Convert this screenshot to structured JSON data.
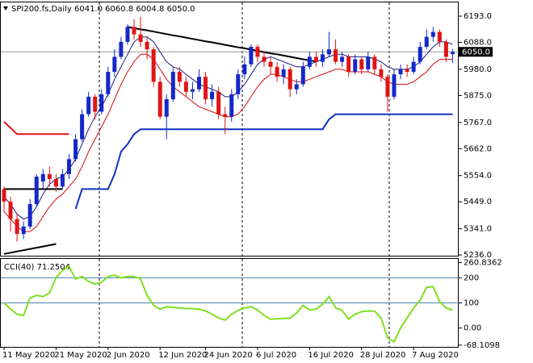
{
  "chart_data": {
    "type": "candlestick",
    "title": "SPI200.fs,Daily  6041.0 6060.8 6004.8 6050.0",
    "categories": [
      "11 May 2020",
      null,
      null,
      null,
      null,
      null,
      null,
      null,
      "21 May 2020",
      null,
      null,
      null,
      null,
      null,
      null,
      null,
      "2 Jun 2020",
      null,
      null,
      null,
      null,
      null,
      null,
      null,
      "12 Jun 2020",
      null,
      null,
      null,
      null,
      null,
      null,
      "24 Jun 2020",
      null,
      null,
      null,
      null,
      null,
      null,
      null,
      "6 Jul 2020",
      null,
      null,
      null,
      null,
      null,
      null,
      null,
      "16 Jul 2020",
      null,
      null,
      null,
      null,
      null,
      null,
      null,
      "28 Jul 2020",
      null,
      null,
      null,
      null,
      null,
      null,
      null,
      "7 Aug 2020",
      null,
      null,
      null,
      null,
      null,
      null
    ],
    "open": [
      5500,
      5450,
      5380,
      5320,
      5350,
      5440,
      5530,
      5560,
      5540,
      5510,
      5560,
      5620,
      5700,
      5800,
      5870,
      5810,
      5880,
      5970,
      6030,
      6090,
      6150,
      6120,
      6090,
      6060,
      5930,
      5790,
      5860,
      5970,
      5930,
      5890,
      5900,
      5950,
      5860,
      5890,
      5800,
      5790,
      5880,
      5960,
      6000,
      6070,
      6030,
      6010,
      5990,
      5950,
      5980,
      5900,
      5920,
      5990,
      6030,
      6010,
      6040,
      6060,
      6010,
      6030,
      5970,
      6020,
      5980,
      6030,
      5980,
      5950,
      5870,
      5960,
      5980,
      5970,
      6010,
      6070,
      6110,
      6130,
      6090,
      6041
    ],
    "high": [
      5510,
      5470,
      5400,
      5370,
      5460,
      5560,
      5580,
      5590,
      5560,
      5580,
      5640,
      5720,
      5820,
      5890,
      5880,
      5900,
      5990,
      6060,
      6110,
      6160,
      6180,
      6190,
      6110,
      6070,
      5950,
      5880,
      5990,
      5990,
      5950,
      5930,
      5980,
      5970,
      5920,
      5910,
      5830,
      5900,
      5980,
      6030,
      6080,
      6080,
      6050,
      6030,
      6010,
      6000,
      5990,
      5940,
      6010,
      6050,
      6050,
      6060,
      6130,
      6100,
      6050,
      6040,
      6040,
      6030,
      6050,
      6040,
      6000,
      5960,
      5980,
      6000,
      6000,
      6030,
      6090,
      6140,
      6150,
      6140,
      6100,
      6060.8
    ],
    "low": [
      5410,
      5330,
      5290,
      5300,
      5340,
      5430,
      5500,
      5510,
      5490,
      5500,
      5540,
      5610,
      5690,
      5790,
      5780,
      5800,
      5870,
      5950,
      6020,
      6080,
      6100,
      6070,
      6020,
      5910,
      5780,
      5700,
      5850,
      5910,
      5870,
      5860,
      5890,
      5840,
      5830,
      5780,
      5720,
      5770,
      5860,
      5940,
      5990,
      6010,
      5990,
      5960,
      5930,
      5920,
      5870,
      5880,
      5910,
      5980,
      5990,
      5990,
      6030,
      6000,
      5990,
      5950,
      5960,
      5960,
      5970,
      5960,
      5930,
      5810,
      5860,
      5940,
      5950,
      5960,
      6000,
      6060,
      6090,
      6070,
      6010,
      6004.8
    ],
    "close": [
      5450,
      5380,
      5320,
      5350,
      5440,
      5550,
      5560,
      5540,
      5510,
      5560,
      5620,
      5700,
      5800,
      5870,
      5810,
      5880,
      5970,
      6030,
      6090,
      6150,
      6120,
      6090,
      6060,
      5930,
      5790,
      5860,
      5970,
      5930,
      5890,
      5900,
      5950,
      5860,
      5890,
      5800,
      5790,
      5880,
      5960,
      6000,
      6070,
      6030,
      6010,
      5990,
      5950,
      5980,
      5900,
      5920,
      5990,
      6030,
      6010,
      6040,
      6060,
      6010,
      6030,
      5970,
      6020,
      5980,
      6030,
      5980,
      5950,
      5870,
      5960,
      5980,
      5970,
      6010,
      6070,
      6110,
      6130,
      6090,
      6030,
      6050
    ],
    "up_color": "#1428c8",
    "down_color": "#e01414",
    "ylim": [
      5233,
      6248
    ],
    "yticks": [
      {
        "value": 6193,
        "label": "6193.0"
      },
      {
        "value": 6088,
        "label": "6088.0"
      },
      {
        "value": 5980,
        "label": "5980.0"
      },
      {
        "value": 5875,
        "label": "5875.0"
      },
      {
        "value": 5767,
        "label": "5767.0"
      },
      {
        "value": 5662,
        "label": "5662.0"
      },
      {
        "value": 5554,
        "label": "5554.0"
      },
      {
        "value": 5449,
        "label": "5449.0"
      },
      {
        "value": 5341,
        "label": "5341.0"
      },
      {
        "value": 5236,
        "label": "5236.0"
      }
    ],
    "last_price": {
      "value": 6050,
      "label": "6050.0"
    },
    "series": [
      {
        "color": "#1a1a80",
        "width": 1,
        "values": [
          5470,
          5440,
          5400,
          5380,
          5390,
          5430,
          5480,
          5520,
          5540,
          5550,
          5580,
          5620,
          5680,
          5740,
          5790,
          5830,
          5880,
          5940,
          5990,
          6040,
          6090,
          6110,
          6110,
          6090,
          6050,
          6010,
          5990,
          5980,
          5960,
          5940,
          5920,
          5910,
          5900,
          5890,
          5870,
          5870,
          5890,
          5920,
          5960,
          6000,
          6020,
          6030,
          6020,
          6010,
          6000,
          5990,
          5990,
          6000,
          6010,
          6020,
          6030,
          6040,
          6040,
          6030,
          6030,
          6030,
          6030,
          6020,
          6010,
          5990,
          5980,
          5980,
          5980,
          5990,
          6010,
          6040,
          6070,
          6090,
          6090,
          6080
        ]
      },
      {
        "color": "#d01010",
        "width": 1,
        "values": [
          5410,
          5380,
          5350,
          5330,
          5330,
          5350,
          5390,
          5430,
          5460,
          5480,
          5510,
          5540,
          5590,
          5650,
          5700,
          5750,
          5800,
          5860,
          5920,
          5970,
          6010,
          6040,
          6040,
          6020,
          5980,
          5940,
          5910,
          5890,
          5870,
          5850,
          5830,
          5820,
          5810,
          5800,
          5790,
          5790,
          5800,
          5830,
          5870,
          5910,
          5940,
          5960,
          5960,
          5950,
          5940,
          5930,
          5930,
          5940,
          5950,
          5960,
          5970,
          5980,
          5980,
          5970,
          5970,
          5970,
          5970,
          5960,
          5950,
          5930,
          5920,
          5920,
          5920,
          5930,
          5950,
          5970,
          6000,
          6020,
          6020,
          6020
        ]
      },
      {
        "color": "#1030c0",
        "width": 2,
        "values": [
          null,
          null,
          null,
          null,
          null,
          null,
          null,
          null,
          null,
          null,
          null,
          5420,
          5500,
          5500,
          5500,
          5500,
          5500,
          5560,
          5650,
          5680,
          5720,
          5740,
          5740,
          5740,
          5740,
          5740,
          5740,
          5740,
          5740,
          5740,
          5740,
          5740,
          5740,
          5740,
          5740,
          5740,
          5740,
          5740,
          5740,
          5740,
          5740,
          5740,
          5740,
          5740,
          5740,
          5740,
          5740,
          5740,
          5740,
          5740,
          5780,
          5800,
          5800,
          5800,
          5800,
          5800,
          5800,
          5800,
          5800,
          5800,
          5800,
          5800,
          5800,
          5800,
          5800,
          5800,
          5800,
          5800,
          5800,
          5800
        ]
      },
      {
        "color": "#e01414",
        "width": 2,
        "values": [
          5770,
          5745,
          5720,
          5720,
          5720,
          5720,
          5720,
          5720,
          5720,
          5720,
          5720,
          null,
          null,
          null,
          null,
          null,
          null,
          null,
          null,
          null,
          null,
          null,
          null,
          null,
          null,
          null,
          null,
          null,
          null,
          null,
          null,
          null,
          null,
          null,
          null,
          null,
          null,
          null,
          null,
          null,
          null,
          null,
          null,
          null,
          null,
          null,
          null,
          null,
          null,
          null,
          null,
          null,
          null,
          null,
          null,
          null,
          null,
          null,
          null,
          null,
          null,
          null,
          null,
          null,
          null,
          null,
          null,
          null,
          null,
          null
        ]
      },
      {
        "color": "#000000",
        "width": 2,
        "values": [
          null,
          null,
          null,
          null,
          null,
          null,
          null,
          null,
          null,
          null,
          null,
          null,
          null,
          null,
          null,
          null,
          null,
          null,
          null,
          6150,
          6145,
          6140,
          6136,
          6131,
          6126,
          6121,
          6116,
          6112,
          6107,
          6102,
          6097,
          6092,
          6088,
          6083,
          6078,
          6073,
          6068,
          6064,
          6059,
          6054,
          6049,
          6044,
          6040,
          6035,
          6030,
          6025,
          6020,
          6016,
          6011,
          null,
          null,
          null,
          null,
          null,
          null,
          null,
          null,
          null,
          null,
          null,
          null,
          null,
          null,
          null,
          null,
          null,
          null,
          null,
          null,
          null
        ]
      },
      {
        "color": "#000000",
        "width": 2,
        "values": [
          5500,
          5500,
          5500,
          5500,
          5500,
          5500,
          5500,
          5500,
          5500,
          5500,
          null,
          null,
          null,
          null,
          null,
          null,
          null,
          null,
          null,
          null,
          null,
          null,
          null,
          null,
          null,
          null,
          null,
          null,
          null,
          null,
          null,
          null,
          null,
          null,
          null,
          null,
          null,
          null,
          null,
          null,
          null,
          null,
          null,
          null,
          null,
          null,
          null,
          null,
          null,
          null,
          null,
          null,
          null,
          null,
          null,
          null,
          null,
          null,
          null,
          null,
          null,
          null,
          null,
          null,
          null,
          null,
          null,
          null,
          null,
          null
        ]
      },
      {
        "color": "#000000",
        "width": 2,
        "values": [
          5240,
          5245,
          5250,
          5255,
          5260,
          5265,
          5270,
          5275,
          5280,
          null,
          null,
          null,
          null,
          null,
          null,
          null,
          null,
          null,
          null,
          null,
          null,
          null,
          null,
          null,
          null,
          null,
          null,
          null,
          null,
          null,
          null,
          null,
          null,
          null,
          null,
          null,
          null,
          null,
          null,
          null,
          null,
          null,
          null,
          null,
          null,
          null,
          null,
          null,
          null,
          null,
          null,
          null,
          null,
          null,
          null,
          null,
          null,
          null,
          null,
          null,
          null,
          null,
          null,
          null,
          null,
          null,
          null,
          null,
          null,
          null
        ]
      }
    ],
    "subchart": {
      "type": "line",
      "title": "CCI(40) 71.2504",
      "color": "#7fe020",
      "values": [
        100,
        75,
        55,
        50,
        120,
        130,
        125,
        140,
        200,
        230,
        245,
        195,
        205,
        185,
        175,
        182,
        205,
        210,
        200,
        205,
        205,
        195,
        130,
        90,
        75,
        85,
        82,
        80,
        78,
        77,
        75,
        68,
        55,
        40,
        32,
        55,
        70,
        80,
        85,
        72,
        50,
        35,
        37,
        38,
        40,
        60,
        90,
        72,
        75,
        95,
        125,
        80,
        70,
        35,
        55,
        65,
        68,
        67,
        40,
        -40,
        -55,
        0,
        40,
        80,
        110,
        162,
        165,
        105,
        80,
        71.2504
      ],
      "ylim": [
        -75,
        275
      ],
      "yticks": [
        260.8362,
        200,
        100,
        {
          "value": 0,
          "label": "0.00"
        },
        -68.1098
      ],
      "levels": [
        200,
        100
      ],
      "level_color": "#4682b4"
    }
  }
}
